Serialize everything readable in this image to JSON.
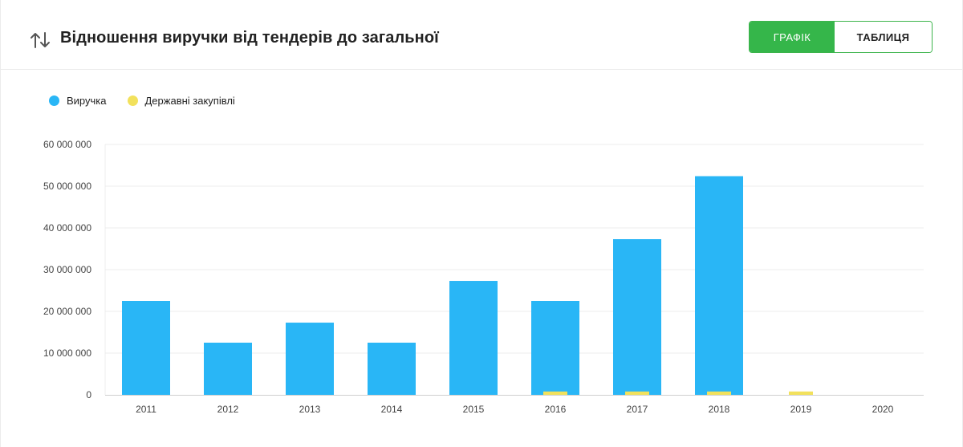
{
  "header": {
    "title": "Відношення виручки від тендерів до загальної",
    "toggle": {
      "graph_label": "ГРАФІК",
      "table_label": "ТАБЛИЦЯ"
    }
  },
  "colors": {
    "revenue": "#29b6f6",
    "procurement": "#f2e15c",
    "accent": "#35b64a",
    "grid": "#ececec"
  },
  "chart_data": {
    "type": "bar",
    "categories": [
      "2011",
      "2012",
      "2013",
      "2014",
      "2015",
      "2016",
      "2017",
      "2018",
      "2019",
      "2020"
    ],
    "series": [
      {
        "name": "Виручка",
        "values": [
          22500000,
          12500000,
          17300000,
          12500000,
          27300000,
          22500000,
          37300000,
          52400000,
          0,
          0
        ]
      },
      {
        "name": "Державні закупівлі",
        "values": [
          0,
          0,
          0,
          0,
          0,
          800000,
          800000,
          800000,
          800000,
          0
        ]
      }
    ],
    "y_tick_labels": [
      "0",
      "10 000 000",
      "20 000 000",
      "30 000 000",
      "40 000 000",
      "50 000 000",
      "60 000 000"
    ],
    "ylim": [
      0,
      60000000
    ],
    "grid": true,
    "legend": "top-left"
  }
}
